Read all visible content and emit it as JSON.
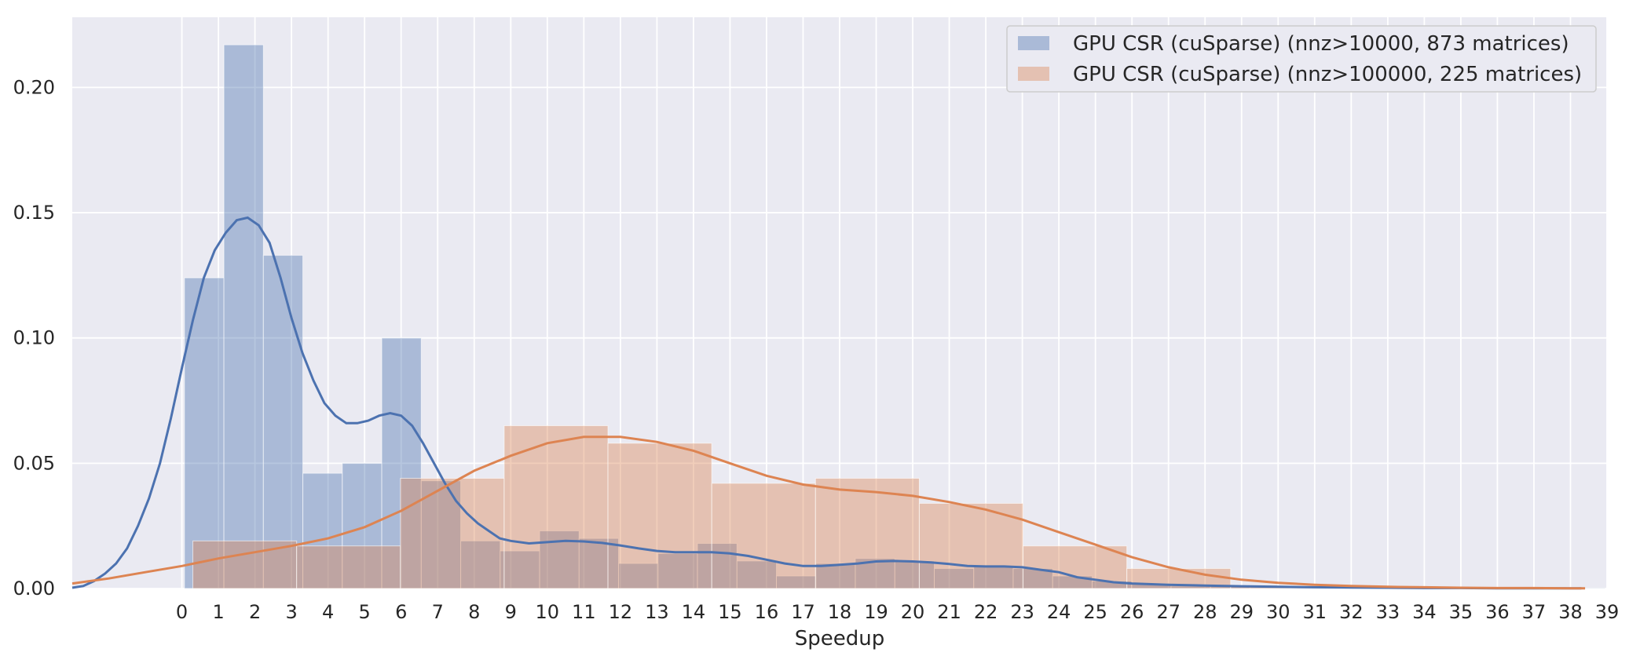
{
  "chart_data": {
    "type": "bar",
    "xlabel": "Speedup",
    "ylabel": "",
    "xlim": [
      -3,
      39
    ],
    "ylim": [
      0,
      0.228
    ],
    "x_ticks": [
      0,
      1,
      2,
      3,
      4,
      5,
      6,
      7,
      8,
      9,
      10,
      11,
      12,
      13,
      14,
      15,
      16,
      17,
      18,
      19,
      20,
      21,
      22,
      23,
      24,
      25,
      26,
      27,
      28,
      29,
      30,
      31,
      32,
      33,
      34,
      35,
      36,
      37,
      38,
      39
    ],
    "y_ticks": [
      0.0,
      0.05,
      0.1,
      0.15,
      0.2
    ],
    "y_tick_labels": [
      "0.00",
      "0.05",
      "0.10",
      "0.15",
      "0.20"
    ],
    "grid": true,
    "legend_position": "top-right",
    "series": [
      {
        "name": "GPU CSR (cuSparse) (nnz>10000, 873 matrices)",
        "color": "#4c72b0",
        "histogram": {
          "bin_edges": [
            0.07,
            1.15,
            2.23,
            3.31,
            4.39,
            5.47,
            6.55,
            7.63,
            8.71,
            9.79,
            10.87,
            11.95,
            13.03,
            14.11,
            15.19,
            16.27,
            17.35,
            18.43,
            19.51,
            20.59,
            21.67,
            22.75,
            23.83,
            24.91,
            25.99,
            27.07,
            28.15,
            29.23,
            30.31,
            31.39,
            32.47,
            33.55,
            34.63,
            35.71,
            36.79,
            37.87,
            38.95
          ],
          "density": [
            0.124,
            0.217,
            0.133,
            0.046,
            0.05,
            0.1,
            0.043,
            0.019,
            0.015,
            0.023,
            0.02,
            0.01,
            0.014,
            0.018,
            0.011,
            0.005,
            0.01,
            0.012,
            0.011,
            0.008,
            0.009,
            0.008,
            0.005,
            0.003,
            0.002,
            0.001,
            0.001,
            0.0005,
            0.0008,
            0.0003,
            0.0003,
            0.0002,
            0.0002,
            0.0002,
            0.0002,
            0.0002
          ]
        },
        "kde": {
          "x": [
            -3.0,
            -2.7,
            -2.4,
            -2.1,
            -1.8,
            -1.5,
            -1.2,
            -0.9,
            -0.6,
            -0.3,
            0.0,
            0.3,
            0.6,
            0.9,
            1.2,
            1.5,
            1.8,
            2.1,
            2.4,
            2.7,
            3.0,
            3.3,
            3.6,
            3.9,
            4.2,
            4.5,
            4.8,
            5.1,
            5.4,
            5.7,
            6.0,
            6.3,
            6.6,
            6.9,
            7.2,
            7.5,
            7.8,
            8.1,
            8.4,
            8.7,
            9.0,
            9.5,
            10.0,
            10.5,
            11.0,
            11.5,
            12.0,
            12.5,
            13.0,
            13.5,
            14.0,
            14.5,
            15.0,
            15.5,
            16.0,
            16.5,
            17.0,
            17.5,
            18.0,
            18.5,
            19.0,
            19.5,
            20.0,
            20.5,
            21.0,
            21.5,
            22.0,
            22.5,
            23.0,
            23.5,
            24.0,
            24.5,
            25.0,
            25.5,
            26.0,
            27.0,
            28.0,
            29.0,
            30.0,
            31.0,
            32.0,
            33.0,
            34.0,
            35.0,
            36.0,
            37.0,
            38.0,
            38.3
          ],
          "y": [
            0.0003,
            0.001,
            0.003,
            0.006,
            0.01,
            0.016,
            0.025,
            0.036,
            0.05,
            0.068,
            0.088,
            0.107,
            0.124,
            0.135,
            0.142,
            0.147,
            0.148,
            0.145,
            0.138,
            0.124,
            0.108,
            0.094,
            0.083,
            0.074,
            0.069,
            0.066,
            0.066,
            0.067,
            0.069,
            0.07,
            0.069,
            0.065,
            0.058,
            0.05,
            0.042,
            0.035,
            0.03,
            0.026,
            0.023,
            0.02,
            0.019,
            0.018,
            0.0185,
            0.019,
            0.0188,
            0.0182,
            0.0172,
            0.016,
            0.015,
            0.0145,
            0.0145,
            0.0145,
            0.014,
            0.013,
            0.0115,
            0.01,
            0.009,
            0.009,
            0.0095,
            0.01,
            0.0108,
            0.011,
            0.0108,
            0.0104,
            0.0098,
            0.009,
            0.0088,
            0.0088,
            0.0085,
            0.0075,
            0.0065,
            0.0045,
            0.0035,
            0.0025,
            0.002,
            0.0015,
            0.0012,
            0.0009,
            0.0007,
            0.0005,
            0.0004,
            0.0003,
            0.0002,
            0.0002,
            0.0001,
            0.0001,
            0.0001,
            0.0001
          ]
        }
      },
      {
        "name": "GPU CSR (cuSparse) (nnz>100000, 225 matrices)",
        "color": "#dd8452",
        "histogram": {
          "bin_edges": [
            0.3,
            3.14,
            5.98,
            8.82,
            11.66,
            14.5,
            17.34,
            20.18,
            23.02,
            25.86,
            28.7,
            31.54,
            34.38,
            37.22,
            38.2
          ],
          "density": [
            0.019,
            0.017,
            0.044,
            0.065,
            0.058,
            0.042,
            0.044,
            0.034,
            0.017,
            0.008,
            0.001,
            0.0005,
            0.0004,
            0.0004
          ]
        },
        "kde": {
          "x": [
            -3.0,
            -2.0,
            -1.0,
            0.0,
            1.0,
            2.0,
            3.0,
            4.0,
            5.0,
            6.0,
            7.0,
            8.0,
            9.0,
            10.0,
            11.0,
            12.0,
            13.0,
            14.0,
            15.0,
            16.0,
            17.0,
            18.0,
            19.0,
            20.0,
            21.0,
            22.0,
            23.0,
            24.0,
            25.0,
            26.0,
            27.0,
            28.0,
            29.0,
            30.0,
            31.0,
            32.0,
            33.0,
            34.0,
            35.0,
            36.0,
            37.0,
            38.0,
            38.4
          ],
          "y": [
            0.002,
            0.004,
            0.0065,
            0.009,
            0.012,
            0.0145,
            0.017,
            0.02,
            0.0245,
            0.031,
            0.039,
            0.047,
            0.053,
            0.058,
            0.0605,
            0.0605,
            0.0585,
            0.055,
            0.05,
            0.045,
            0.0415,
            0.0395,
            0.0385,
            0.037,
            0.0345,
            0.0315,
            0.0275,
            0.0225,
            0.0175,
            0.0125,
            0.0085,
            0.0055,
            0.0035,
            0.0023,
            0.0015,
            0.001,
            0.0007,
            0.0005,
            0.0003,
            0.0002,
            0.0002,
            0.0001,
            0.0001
          ]
        }
      }
    ]
  }
}
